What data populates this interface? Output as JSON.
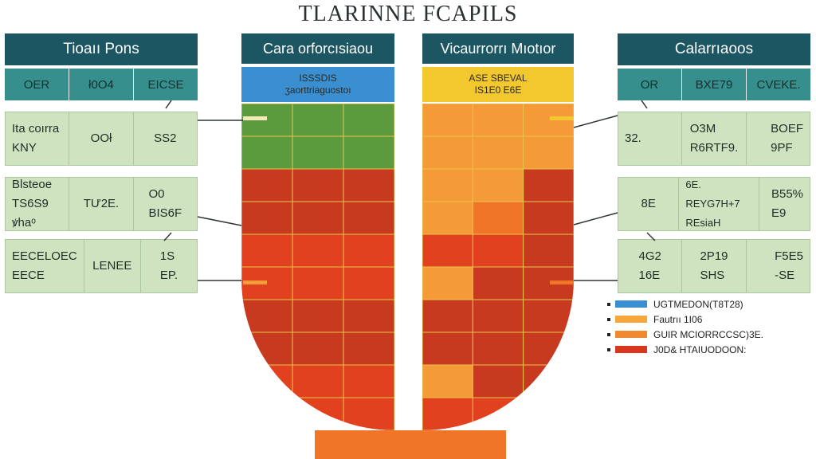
{
  "title": "TLARINNE FCAPILS",
  "left_panel": {
    "header": "Tioaıı Pons",
    "subheaders": [
      "OER",
      "ł0O4",
      "EICSE"
    ],
    "rows": [
      [
        "Ita coırra\nKNY",
        "OOł",
        "SS2"
      ],
      [
        "Blsteoe\nTS6S9 ꝟhaᵒ",
        "TƯ2E.",
        "O0\nBIS6F"
      ],
      [
        "EECELOEC\nEECE",
        "LENEE",
        "1S\nEP."
      ]
    ]
  },
  "center_left": {
    "header": "Cara orforcısiaou",
    "sublabel_1": "ISSSDIS",
    "sublabel_2": "ʒaorttriaguostoı"
  },
  "center_right": {
    "header": "Vicaurrorrı Mıotıor",
    "sublabel_1": "ASE SBEVAL",
    "sublabel_2": "IS1E0 E6E"
  },
  "right_panel": {
    "header": "Calarrıaoos",
    "subheaders": [
      "OR",
      "BXE79",
      "CVEKE."
    ],
    "rows": [
      [
        "32.",
        "O3M\nR6RTF9.",
        "BOEF\n9PF"
      ],
      [
        "8E",
        "6E.\nREYG7H+7 REsiaH",
        "B55%\nE9"
      ],
      [
        "4G2\n16E",
        "2P19\nSHS",
        "F5E5\n-SE"
      ]
    ]
  },
  "legend": [
    {
      "label": "UGTMEDON(T8T28)",
      "color": "#3b8fd0"
    },
    {
      "label": "Fautrıı 1I06",
      "color": "#f6a63b"
    },
    {
      "label": "GUIR MCIORRCCSC)3E.",
      "color": "#ef8a2e"
    },
    {
      "label": "J0D& HTAIUODOON:",
      "color": "#d8361f"
    }
  ],
  "colors": {
    "header": "#1c5662",
    "subheader": "#368f8d",
    "row_bg": "#cfe3c1",
    "left_top": "#3a8fd0",
    "right_top": "#f3c72e",
    "green": "#5c9b3d",
    "red": "#c83a20",
    "red_bright": "#e2411f",
    "orange": "#f49a38",
    "orange_dark": "#f07528"
  },
  "chart_data": {
    "type": "heatmap",
    "columns": [
      {
        "name": "Cara orforcısiaou",
        "rows": [
          [
            "green",
            "green",
            "green"
          ],
          [
            "green",
            "green",
            "green"
          ],
          [
            "red",
            "red",
            "red"
          ],
          [
            "red",
            "red",
            "red"
          ],
          [
            "red_bright",
            "red_bright",
            "red_bright"
          ],
          [
            "red_bright",
            "red_bright",
            "red_bright"
          ],
          [
            "red",
            "red",
            "red"
          ],
          [
            "red",
            "red",
            "red"
          ],
          [
            "red_bright",
            "red_bright",
            "red_bright"
          ],
          [
            "red_bright",
            "red_bright",
            "red_bright"
          ]
        ]
      },
      {
        "name": "Vicaurrorrı Mıotıor",
        "rows": [
          [
            "orange",
            "orange",
            "orange"
          ],
          [
            "orange",
            "orange",
            "orange"
          ],
          [
            "orange",
            "orange",
            "red"
          ],
          [
            "orange",
            "orange_dark",
            "red"
          ],
          [
            "red_bright",
            "red_bright",
            "red"
          ],
          [
            "orange",
            "red",
            "red"
          ],
          [
            "red",
            "red",
            "red"
          ],
          [
            "red",
            "red",
            "red"
          ],
          [
            "orange",
            "red",
            "red"
          ],
          [
            "red_bright",
            "red_bright",
            "red_bright"
          ]
        ]
      }
    ]
  }
}
